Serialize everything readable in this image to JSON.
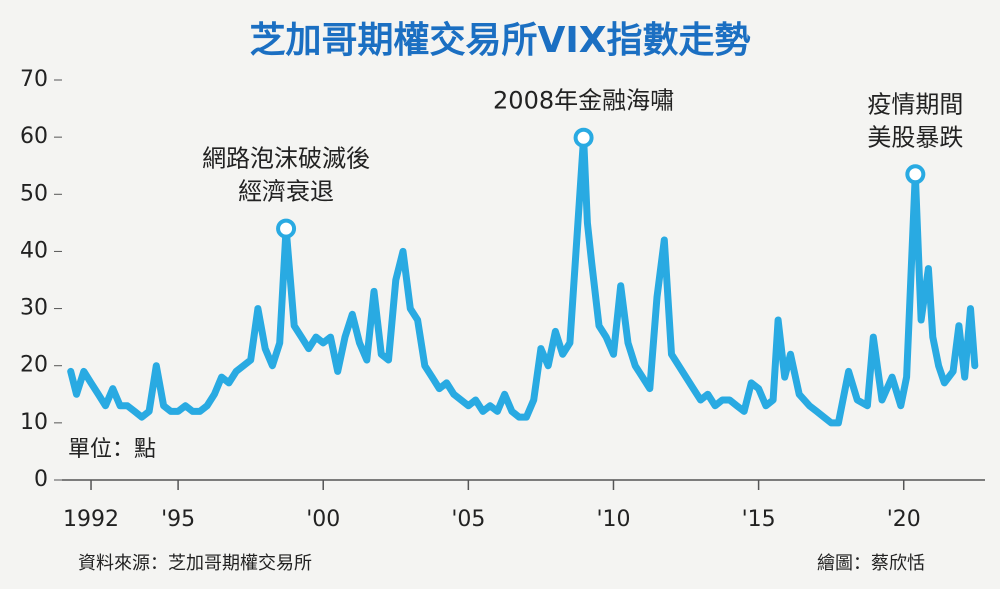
{
  "chart_data": {
    "type": "line",
    "title": "芝加哥期權交易所VIX指數走勢",
    "unit_label": "單位：點",
    "source": "資料來源：芝加哥期權交易所",
    "credit": "繪圖：蔡欣恬",
    "color": "#29aae2",
    "xlim": [
      1991,
      2022.8
    ],
    "ylim": [
      0,
      70
    ],
    "yticks": [
      0,
      10,
      20,
      30,
      40,
      50,
      60,
      70
    ],
    "xticks": [
      {
        "value": 1992,
        "label": "1992"
      },
      {
        "value": 1995,
        "label": "'95"
      },
      {
        "value": 2000,
        "label": "'00"
      },
      {
        "value": 2005,
        "label": "'05"
      },
      {
        "value": 2010,
        "label": "'10"
      },
      {
        "value": 2015,
        "label": "'15"
      },
      {
        "value": 2020,
        "label": "'20"
      }
    ],
    "x": [
      1991.3,
      1991.5,
      1991.75,
      1992.0,
      1992.25,
      1992.5,
      1992.75,
      1993.0,
      1993.25,
      1993.5,
      1993.75,
      1994.0,
      1994.25,
      1994.5,
      1994.75,
      1995.0,
      1995.25,
      1995.5,
      1995.75,
      1996.0,
      1996.25,
      1996.5,
      1996.75,
      1997.0,
      1997.25,
      1997.5,
      1997.75,
      1998.0,
      1998.25,
      1998.5,
      1998.72,
      1999.0,
      1999.25,
      1999.5,
      1999.75,
      2000.0,
      2000.25,
      2000.5,
      2000.75,
      2001.0,
      2001.25,
      2001.5,
      2001.75,
      2002.0,
      2002.25,
      2002.5,
      2002.75,
      2003.0,
      2003.25,
      2003.5,
      2003.75,
      2004.0,
      2004.25,
      2004.5,
      2004.75,
      2005.0,
      2005.25,
      2005.5,
      2005.75,
      2006.0,
      2006.25,
      2006.5,
      2006.75,
      2007.0,
      2007.25,
      2007.5,
      2007.75,
      2008.0,
      2008.25,
      2008.5,
      2008.97,
      2009.1,
      2009.25,
      2009.5,
      2009.75,
      2010.0,
      2010.25,
      2010.5,
      2010.75,
      2011.0,
      2011.25,
      2011.5,
      2011.75,
      2012.0,
      2012.25,
      2012.5,
      2012.75,
      2013.0,
      2013.25,
      2013.5,
      2013.75,
      2014.0,
      2014.25,
      2014.5,
      2014.75,
      2015.0,
      2015.25,
      2015.5,
      2015.67,
      2015.9,
      2016.1,
      2016.4,
      2016.75,
      2017.0,
      2017.25,
      2017.5,
      2017.75,
      2018.1,
      2018.4,
      2018.75,
      2018.95,
      2019.25,
      2019.6,
      2019.9,
      2020.1,
      2020.4,
      2020.6,
      2020.85,
      2021.0,
      2021.2,
      2021.4,
      2021.7,
      2021.9,
      2022.1,
      2022.3,
      2022.45
    ],
    "series": [
      {
        "name": "VIX",
        "color": "#29aae2",
        "values": [
          19,
          15,
          19,
          17,
          15,
          13,
          16,
          13,
          13,
          12,
          11,
          12,
          20,
          13,
          12,
          12,
          13,
          12,
          12,
          13,
          15,
          18,
          17,
          19,
          20,
          21,
          30,
          23,
          20,
          24,
          44,
          27,
          25,
          23,
          25,
          24,
          25,
          19,
          25,
          29,
          24,
          21,
          33,
          22,
          21,
          35,
          40,
          30,
          28,
          20,
          18,
          16,
          17,
          15,
          14,
          13,
          14,
          12,
          13,
          12,
          15,
          12,
          11,
          11,
          14,
          23,
          20,
          26,
          22,
          24,
          59.9,
          45,
          38,
          27,
          25,
          22,
          34,
          24,
          20,
          18,
          16,
          32,
          42,
          22,
          20,
          18,
          16,
          14,
          15,
          13,
          14,
          14,
          13,
          12,
          17,
          16,
          13,
          14,
          28,
          18,
          22,
          15,
          13,
          12,
          11,
          10,
          10,
          19,
          14,
          13,
          25,
          14,
          18,
          13,
          18,
          53.5,
          28,
          37,
          25,
          20,
          17,
          19,
          27,
          18,
          30,
          20
        ]
      }
    ],
    "annotations": [
      {
        "text": [
          "網路泡沫破滅後",
          "經濟衰退"
        ],
        "x": 1998.72,
        "y": 44
      },
      {
        "text": [
          "2008年金融海嘯"
        ],
        "x": 2008.97,
        "y": 59.9
      },
      {
        "text": [
          "疫情期間",
          "美股暴跌"
        ],
        "x": 2020.4,
        "y": 53.5
      }
    ]
  }
}
